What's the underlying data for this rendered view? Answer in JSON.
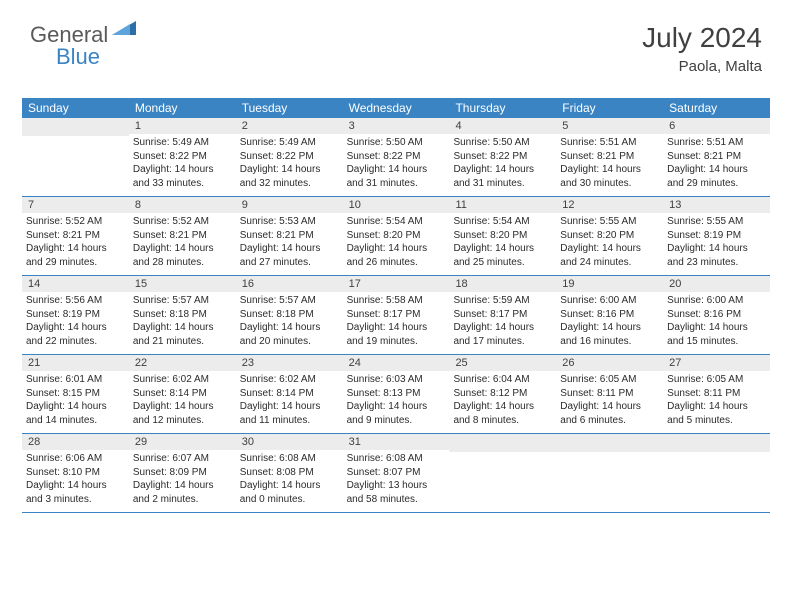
{
  "logo": {
    "part1": "General",
    "part2": "Blue"
  },
  "header": {
    "month": "July 2024",
    "location": "Paola, Malta"
  },
  "colors": {
    "header_bg": "#3a84c4",
    "day_num_bg": "#ececec",
    "border": "#3a84c4",
    "text": "#2b2b2b",
    "title": "#404040",
    "logo_gray": "#5a5a5a",
    "logo_blue": "#3a84c4",
    "background": "#ffffff"
  },
  "dayNames": [
    "Sunday",
    "Monday",
    "Tuesday",
    "Wednesday",
    "Thursday",
    "Friday",
    "Saturday"
  ],
  "weeks": [
    [
      {
        "day": "",
        "lines": []
      },
      {
        "day": "1",
        "lines": [
          "Sunrise: 5:49 AM",
          "Sunset: 8:22 PM",
          "Daylight: 14 hours",
          "and 33 minutes."
        ]
      },
      {
        "day": "2",
        "lines": [
          "Sunrise: 5:49 AM",
          "Sunset: 8:22 PM",
          "Daylight: 14 hours",
          "and 32 minutes."
        ]
      },
      {
        "day": "3",
        "lines": [
          "Sunrise: 5:50 AM",
          "Sunset: 8:22 PM",
          "Daylight: 14 hours",
          "and 31 minutes."
        ]
      },
      {
        "day": "4",
        "lines": [
          "Sunrise: 5:50 AM",
          "Sunset: 8:22 PM",
          "Daylight: 14 hours",
          "and 31 minutes."
        ]
      },
      {
        "day": "5",
        "lines": [
          "Sunrise: 5:51 AM",
          "Sunset: 8:21 PM",
          "Daylight: 14 hours",
          "and 30 minutes."
        ]
      },
      {
        "day": "6",
        "lines": [
          "Sunrise: 5:51 AM",
          "Sunset: 8:21 PM",
          "Daylight: 14 hours",
          "and 29 minutes."
        ]
      }
    ],
    [
      {
        "day": "7",
        "lines": [
          "Sunrise: 5:52 AM",
          "Sunset: 8:21 PM",
          "Daylight: 14 hours",
          "and 29 minutes."
        ]
      },
      {
        "day": "8",
        "lines": [
          "Sunrise: 5:52 AM",
          "Sunset: 8:21 PM",
          "Daylight: 14 hours",
          "and 28 minutes."
        ]
      },
      {
        "day": "9",
        "lines": [
          "Sunrise: 5:53 AM",
          "Sunset: 8:21 PM",
          "Daylight: 14 hours",
          "and 27 minutes."
        ]
      },
      {
        "day": "10",
        "lines": [
          "Sunrise: 5:54 AM",
          "Sunset: 8:20 PM",
          "Daylight: 14 hours",
          "and 26 minutes."
        ]
      },
      {
        "day": "11",
        "lines": [
          "Sunrise: 5:54 AM",
          "Sunset: 8:20 PM",
          "Daylight: 14 hours",
          "and 25 minutes."
        ]
      },
      {
        "day": "12",
        "lines": [
          "Sunrise: 5:55 AM",
          "Sunset: 8:20 PM",
          "Daylight: 14 hours",
          "and 24 minutes."
        ]
      },
      {
        "day": "13",
        "lines": [
          "Sunrise: 5:55 AM",
          "Sunset: 8:19 PM",
          "Daylight: 14 hours",
          "and 23 minutes."
        ]
      }
    ],
    [
      {
        "day": "14",
        "lines": [
          "Sunrise: 5:56 AM",
          "Sunset: 8:19 PM",
          "Daylight: 14 hours",
          "and 22 minutes."
        ]
      },
      {
        "day": "15",
        "lines": [
          "Sunrise: 5:57 AM",
          "Sunset: 8:18 PM",
          "Daylight: 14 hours",
          "and 21 minutes."
        ]
      },
      {
        "day": "16",
        "lines": [
          "Sunrise: 5:57 AM",
          "Sunset: 8:18 PM",
          "Daylight: 14 hours",
          "and 20 minutes."
        ]
      },
      {
        "day": "17",
        "lines": [
          "Sunrise: 5:58 AM",
          "Sunset: 8:17 PM",
          "Daylight: 14 hours",
          "and 19 minutes."
        ]
      },
      {
        "day": "18",
        "lines": [
          "Sunrise: 5:59 AM",
          "Sunset: 8:17 PM",
          "Daylight: 14 hours",
          "and 17 minutes."
        ]
      },
      {
        "day": "19",
        "lines": [
          "Sunrise: 6:00 AM",
          "Sunset: 8:16 PM",
          "Daylight: 14 hours",
          "and 16 minutes."
        ]
      },
      {
        "day": "20",
        "lines": [
          "Sunrise: 6:00 AM",
          "Sunset: 8:16 PM",
          "Daylight: 14 hours",
          "and 15 minutes."
        ]
      }
    ],
    [
      {
        "day": "21",
        "lines": [
          "Sunrise: 6:01 AM",
          "Sunset: 8:15 PM",
          "Daylight: 14 hours",
          "and 14 minutes."
        ]
      },
      {
        "day": "22",
        "lines": [
          "Sunrise: 6:02 AM",
          "Sunset: 8:14 PM",
          "Daylight: 14 hours",
          "and 12 minutes."
        ]
      },
      {
        "day": "23",
        "lines": [
          "Sunrise: 6:02 AM",
          "Sunset: 8:14 PM",
          "Daylight: 14 hours",
          "and 11 minutes."
        ]
      },
      {
        "day": "24",
        "lines": [
          "Sunrise: 6:03 AM",
          "Sunset: 8:13 PM",
          "Daylight: 14 hours",
          "and 9 minutes."
        ]
      },
      {
        "day": "25",
        "lines": [
          "Sunrise: 6:04 AM",
          "Sunset: 8:12 PM",
          "Daylight: 14 hours",
          "and 8 minutes."
        ]
      },
      {
        "day": "26",
        "lines": [
          "Sunrise: 6:05 AM",
          "Sunset: 8:11 PM",
          "Daylight: 14 hours",
          "and 6 minutes."
        ]
      },
      {
        "day": "27",
        "lines": [
          "Sunrise: 6:05 AM",
          "Sunset: 8:11 PM",
          "Daylight: 14 hours",
          "and 5 minutes."
        ]
      }
    ],
    [
      {
        "day": "28",
        "lines": [
          "Sunrise: 6:06 AM",
          "Sunset: 8:10 PM",
          "Daylight: 14 hours",
          "and 3 minutes."
        ]
      },
      {
        "day": "29",
        "lines": [
          "Sunrise: 6:07 AM",
          "Sunset: 8:09 PM",
          "Daylight: 14 hours",
          "and 2 minutes."
        ]
      },
      {
        "day": "30",
        "lines": [
          "Sunrise: 6:08 AM",
          "Sunset: 8:08 PM",
          "Daylight: 14 hours",
          "and 0 minutes."
        ]
      },
      {
        "day": "31",
        "lines": [
          "Sunrise: 6:08 AM",
          "Sunset: 8:07 PM",
          "Daylight: 13 hours",
          "and 58 minutes."
        ]
      },
      {
        "day": "",
        "lines": []
      },
      {
        "day": "",
        "lines": []
      },
      {
        "day": "",
        "lines": []
      }
    ]
  ]
}
